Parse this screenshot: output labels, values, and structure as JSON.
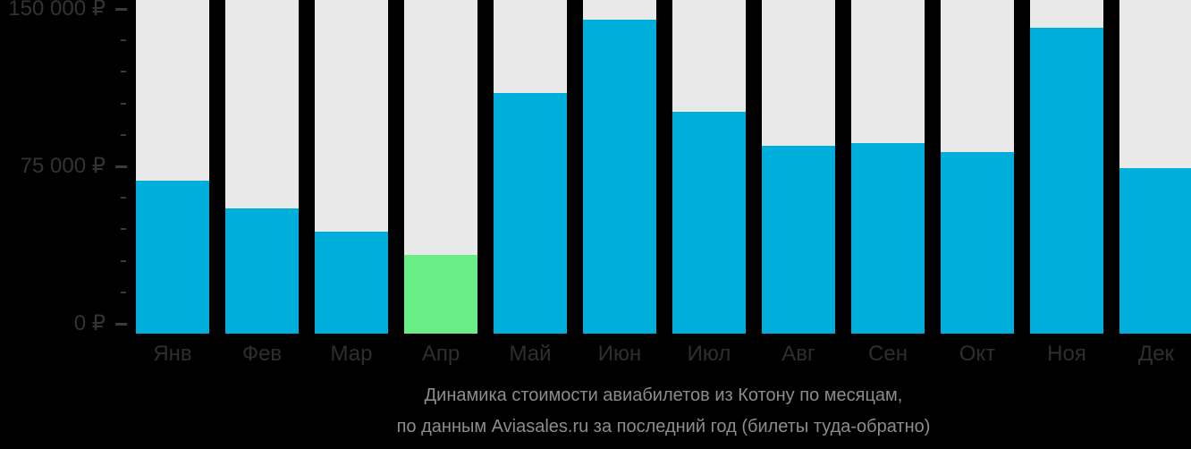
{
  "chart_data": {
    "type": "bar",
    "title": "Динамика стоимости авиабилетов из Котону по месяцам,",
    "subtitle": "по данным Aviasales.ru за последний год (билеты туда-обратно)",
    "categories": [
      "Янв",
      "Фев",
      "Мар",
      "Апр",
      "Май",
      "Июн",
      "Июл",
      "Авг",
      "Сен",
      "Окт",
      "Ноя",
      "Дек"
    ],
    "values": [
      68000,
      55000,
      44000,
      33000,
      110000,
      145000,
      101000,
      85000,
      86000,
      82000,
      141000,
      74000
    ],
    "unit": "₽",
    "xlabel": "",
    "ylabel": "",
    "ylim": [
      0,
      150000
    ],
    "y_ticks": [
      {
        "value": 0,
        "label": "0 ₽"
      },
      {
        "value": 75000,
        "label": "75 000 ₽"
      },
      {
        "value": 150000,
        "label": "150 000 ₽"
      }
    ],
    "minor_tick_step": 15000,
    "grid": false,
    "legend": false,
    "highlight_index": 3,
    "highlight_label": "Апр",
    "colors": {
      "background": "#000000",
      "bar": "#00aedc",
      "bar_highlight": "#69ee86",
      "bar_track": "#e9e9e9",
      "axis_label": "#333333",
      "month_label": "#2e2e2e",
      "tick": "#3a3a3a",
      "caption": "#8c8c8c"
    }
  }
}
